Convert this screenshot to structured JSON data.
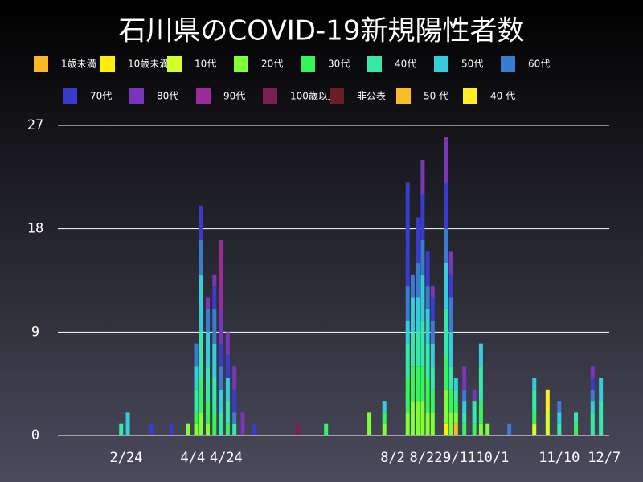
{
  "chart_data": {
    "type": "stacked-bar",
    "title": "石川県のCOVID-19新規陽性者数",
    "x": [
      52,
      56,
      70,
      82,
      92,
      97,
      100,
      104,
      108,
      112,
      116,
      120,
      125,
      132,
      158,
      175,
      201,
      210,
      224,
      227,
      230,
      233,
      236,
      239,
      247,
      250,
      253,
      258,
      264,
      268,
      272,
      285,
      300,
      308,
      315,
      325,
      335,
      340
    ],
    "xlim": [
      14,
      345
    ],
    "xticks": [
      {
        "value": 55,
        "label": "2/24"
      },
      {
        "value": 95,
        "label": "4/4"
      },
      {
        "value": 115,
        "label": "4/24"
      },
      {
        "value": 215,
        "label": "8/2"
      },
      {
        "value": 235,
        "label": "8/22"
      },
      {
        "value": 255,
        "label": "9/11"
      },
      {
        "value": 275,
        "label": "10/1"
      },
      {
        "value": 315,
        "label": "11/10"
      },
      {
        "value": 342,
        "label": "12/7"
      }
    ],
    "ylim": [
      0,
      27
    ],
    "yticks": [
      0,
      9,
      18,
      27
    ],
    "grid": true,
    "series": [
      {
        "name": "1歳未満",
        "color": "#f9b826",
        "values": [
          0,
          0,
          0,
          0,
          0,
          0,
          0,
          0,
          0,
          0,
          0,
          0,
          0,
          0,
          0,
          0,
          0,
          0,
          0,
          0,
          0,
          0,
          0,
          0,
          0,
          0,
          1,
          0,
          0,
          0,
          0,
          0,
          0,
          0,
          0,
          0,
          0,
          0
        ]
      },
      {
        "name": "10歳未満",
        "color": "#ffee00",
        "values": [
          0,
          0,
          0,
          0,
          0,
          0,
          0,
          0,
          0,
          0,
          0,
          0,
          0,
          0,
          0,
          0,
          0,
          0,
          0,
          0,
          0,
          0,
          0,
          0,
          1,
          0,
          0,
          0,
          0,
          0,
          0,
          0,
          0,
          0,
          0,
          0,
          0,
          0
        ]
      },
      {
        "name": "10代",
        "color": "#d4ff29",
        "values": [
          0,
          0,
          0,
          0,
          0,
          0,
          0,
          0,
          0,
          0,
          0,
          0,
          0,
          0,
          0,
          0,
          0,
          0,
          0,
          0,
          0,
          0,
          0,
          0,
          0,
          0,
          0,
          0,
          0,
          0,
          0,
          0,
          1,
          2,
          0,
          0,
          0,
          0
        ]
      },
      {
        "name": "20代",
        "color": "#7fff35",
        "values": [
          0,
          0,
          0,
          0,
          1,
          1,
          2,
          1,
          0,
          0,
          0,
          0,
          0,
          0,
          0,
          0,
          2,
          1,
          2,
          3,
          3,
          3,
          2,
          2,
          3,
          2,
          1,
          0,
          0,
          1,
          1,
          0,
          0,
          0,
          0,
          0,
          0,
          0
        ]
      },
      {
        "name": "30代",
        "color": "#35f55a",
        "values": [
          0,
          0,
          0,
          0,
          0,
          1,
          3,
          2,
          2,
          0,
          1,
          0,
          0,
          0,
          0,
          1,
          0,
          1,
          3,
          3,
          3,
          3,
          3,
          2,
          3,
          2,
          1,
          1,
          1,
          2,
          0,
          0,
          1,
          0,
          0,
          1,
          0,
          0
        ]
      },
      {
        "name": "40代",
        "color": "#35eaa8",
        "values": [
          1,
          0,
          0,
          0,
          0,
          2,
          4,
          3,
          3,
          2,
          2,
          1,
          0,
          0,
          0,
          0,
          0,
          0,
          3,
          3,
          3,
          4,
          3,
          2,
          4,
          2,
          1,
          1,
          2,
          3,
          0,
          0,
          2,
          0,
          1,
          1,
          2,
          3
        ]
      },
      {
        "name": "50代",
        "color": "#35ccdc",
        "values": [
          0,
          2,
          0,
          0,
          0,
          2,
          5,
          3,
          3,
          2,
          2,
          0,
          0,
          0,
          0,
          0,
          0,
          1,
          2,
          3,
          3,
          4,
          3,
          2,
          4,
          3,
          1,
          1,
          0,
          2,
          0,
          0,
          1,
          0,
          1,
          0,
          1,
          2
        ]
      },
      {
        "name": "60代",
        "color": "#3a7ccf",
        "values": [
          0,
          0,
          0,
          0,
          0,
          2,
          3,
          2,
          3,
          2,
          0,
          1,
          0,
          0,
          0,
          0,
          0,
          0,
          3,
          2,
          3,
          3,
          2,
          2,
          3,
          3,
          0,
          1,
          0,
          0,
          0,
          1,
          0,
          0,
          1,
          0,
          1,
          0
        ]
      },
      {
        "name": "70代",
        "color": "#3a3acc",
        "values": [
          0,
          0,
          1,
          1,
          0,
          0,
          3,
          0,
          2,
          2,
          2,
          2,
          0,
          1,
          0,
          0,
          0,
          0,
          9,
          0,
          4,
          4,
          3,
          2,
          4,
          2,
          0,
          0,
          0,
          0,
          0,
          0,
          0,
          0,
          0,
          0,
          1,
          0
        ]
      },
      {
        "name": "80代",
        "color": "#7a35b8",
        "values": [
          0,
          0,
          0,
          0,
          0,
          0,
          0,
          1,
          1,
          3,
          2,
          2,
          2,
          0,
          0,
          0,
          0,
          0,
          0,
          0,
          0,
          3,
          0,
          1,
          4,
          2,
          0,
          2,
          1,
          0,
          0,
          0,
          0,
          0,
          0,
          0,
          1,
          0
        ]
      },
      {
        "name": "90代",
        "color": "#9b2a9b",
        "values": [
          0,
          0,
          0,
          0,
          0,
          0,
          0,
          0,
          0,
          6,
          0,
          0,
          0,
          0,
          0,
          0,
          0,
          0,
          0,
          0,
          0,
          0,
          0,
          0,
          0,
          0,
          0,
          0,
          0,
          0,
          0,
          0,
          0,
          0,
          0,
          0,
          0,
          0
        ]
      },
      {
        "name": "100歳以上",
        "color": "#7a2050",
        "values": [
          0,
          0,
          0,
          0,
          0,
          0,
          0,
          0,
          0,
          0,
          0,
          0,
          0,
          0,
          1,
          0,
          0,
          0,
          0,
          0,
          0,
          0,
          0,
          0,
          0,
          0,
          0,
          0,
          0,
          0,
          0,
          0,
          0,
          0,
          0,
          0,
          0,
          0
        ]
      },
      {
        "name": "非公表",
        "color": "#6b1f24",
        "values": [
          0,
          0,
          0,
          0,
          0,
          0,
          0,
          0,
          0,
          0,
          0,
          0,
          0,
          0,
          0,
          0,
          0,
          0,
          0,
          0,
          0,
          0,
          0,
          0,
          0,
          0,
          0,
          0,
          0,
          0,
          0,
          0,
          0,
          0,
          0,
          0,
          0,
          0
        ]
      },
      {
        "name": "50 代",
        "color": "#f5bd2a",
        "values": [
          0,
          0,
          0,
          0,
          0,
          0,
          0,
          0,
          0,
          0,
          0,
          0,
          0,
          0,
          0,
          0,
          0,
          0,
          0,
          0,
          0,
          0,
          0,
          0,
          0,
          0,
          0,
          0,
          0,
          0,
          0,
          0,
          0,
          0,
          0,
          0,
          0,
          0
        ]
      },
      {
        "name": "40 代",
        "color": "#ffee26",
        "values": [
          0,
          0,
          0,
          0,
          0,
          0,
          0,
          0,
          0,
          0,
          0,
          0,
          0,
          0,
          0,
          0,
          0,
          0,
          0,
          0,
          0,
          0,
          0,
          0,
          0,
          0,
          0,
          0,
          0,
          0,
          0,
          0,
          0,
          2,
          0,
          0,
          0,
          0
        ]
      }
    ]
  }
}
